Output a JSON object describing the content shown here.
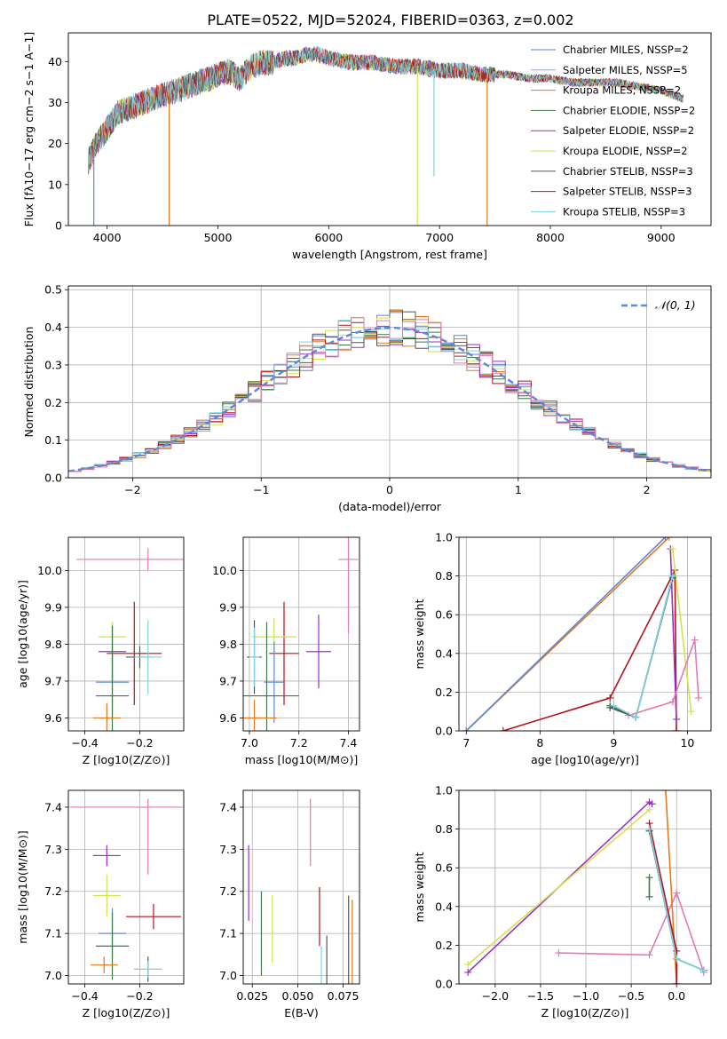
{
  "figure_title": "PLATE=0522, MJD=52024, FIBERID=0363, z=0.002",
  "chart_data": [
    {
      "type": "line",
      "panel": "spectrum",
      "xlabel": "wavelength [Angstrom, rest frame]",
      "ylabel": "Flux [fλ10−17 erg cm−2 s−1 A−1]",
      "xlim": [
        3650,
        9450
      ],
      "ylim": [
        0,
        47
      ],
      "xticks": [
        4000,
        5000,
        6000,
        7000,
        8000,
        9000
      ],
      "yticks": [
        0,
        10,
        20,
        30,
        40
      ],
      "grid": false,
      "legend_position": "top-right",
      "series": [
        {
          "name": "Chabrier MILES, NSSP=2",
          "color": "#5f86d9"
        },
        {
          "name": "Salpeter MILES, NSSP=5",
          "color": "#9aa7c7"
        },
        {
          "name": "Kroupa MILES, NSSP=2",
          "color": "#e07b1f"
        },
        {
          "name": "Chabrier ELODIE, NSSP=2",
          "color": "#3d7a4a"
        },
        {
          "name": "Salpeter ELODIE, NSSP=2",
          "color": "#9b2fc4"
        },
        {
          "name": "Kroupa ELODIE, NSSP=2",
          "color": "#d2e34b"
        },
        {
          "name": "Chabrier STELIB, NSSP=3",
          "color": "#555555"
        },
        {
          "name": "Salpeter STELIB, NSSP=3",
          "color": "#b3141b"
        },
        {
          "name": "Kroupa STELIB, NSSP=3",
          "color": "#7fd3e0"
        }
      ],
      "continuum": {
        "x": [
          3830,
          3900,
          3950,
          4000,
          4100,
          4200,
          4300,
          4400,
          4500,
          4600,
          4700,
          4800,
          4900,
          5000,
          5100,
          5200,
          5300,
          5400,
          5500,
          5600,
          5700,
          5800,
          5900,
          6000,
          6200,
          6400,
          6600,
          6800,
          7000,
          7200,
          7400,
          7600,
          7800,
          8000,
          8200,
          8400,
          8600,
          8800,
          9000,
          9100,
          9200
        ],
        "y": [
          16,
          20,
          22,
          24,
          28,
          29,
          30,
          31,
          32,
          33,
          34,
          35,
          36,
          37,
          38,
          36,
          39,
          40,
          40,
          41,
          41,
          42,
          42,
          41,
          40,
          40,
          39,
          39,
          38,
          38,
          37,
          37,
          36,
          36,
          35,
          35,
          35,
          34,
          33,
          32,
          31
        ]
      },
      "absorption_spikes": [
        {
          "x": 3880,
          "y": 0
        },
        {
          "x": 4560,
          "y": 0
        },
        {
          "x": 6800,
          "y": 0
        },
        {
          "x": 6950,
          "y": 12
        },
        {
          "x": 7430,
          "y": 0
        }
      ]
    },
    {
      "type": "line",
      "panel": "residual-histogram",
      "xlabel": "(data-model)/error",
      "ylabel": "Normed distribution",
      "xlim": [
        -2.5,
        2.5
      ],
      "ylim": [
        0,
        0.51
      ],
      "xticks": [
        -2,
        -1,
        0,
        1,
        2
      ],
      "yticks": [
        0,
        0.1,
        0.2,
        0.3,
        0.4,
        0.5
      ],
      "grid": true,
      "legend_position": "top-right",
      "reference_curve": {
        "name": "𝒩(0, 1)",
        "color": "#5f86d9"
      },
      "bin_width": 0.1
    },
    {
      "type": "scatter",
      "panel": "age-vs-Z",
      "xlabel": "Z [log10(Z/Z⊙)]",
      "ylabel": "age [log10(age/yr)]",
      "xlim": [
        -0.46,
        -0.04
      ],
      "ylim": [
        9.565,
        10.09
      ],
      "xticks": [
        -0.4,
        -0.2
      ],
      "yticks": [
        9.6,
        9.7,
        9.8,
        9.9,
        10.0
      ],
      "grid": true,
      "points": [
        {
          "x": -0.17,
          "y": 10.03,
          "xerr": 0.26,
          "yerr": 0.03,
          "color": "#e07bb5"
        },
        {
          "x": -0.22,
          "y": 9.775,
          "xerr": 0.1,
          "yerr": 0.14,
          "color": "#b3141b"
        },
        {
          "x": -0.3,
          "y": 9.78,
          "xerr": 0.05,
          "yerr": 0.08,
          "color": "#9b2fc4"
        },
        {
          "x": -0.3,
          "y": 9.82,
          "xerr": 0.05,
          "yerr": 0.04,
          "color": "#d2e34b"
        },
        {
          "x": -0.3,
          "y": 9.697,
          "xerr": 0.06,
          "yerr": 0.1,
          "color": "#5f86d9"
        },
        {
          "x": -0.3,
          "y": 9.66,
          "xerr": 0.06,
          "yerr": 0.19,
          "color": "#3d7a4a"
        },
        {
          "x": -0.32,
          "y": 9.6,
          "xerr": 0.05,
          "yerr": 0.04,
          "color": "#e07b1f"
        },
        {
          "x": -0.2,
          "y": 9.765,
          "xerr": 0.05,
          "yerr": 0.03,
          "color": "#555555"
        },
        {
          "x": -0.17,
          "y": 9.765,
          "xerr": 0.05,
          "yerr": 0.1,
          "color": "#7fd3e0"
        }
      ]
    },
    {
      "type": "scatter",
      "panel": "age-vs-mass",
      "xlabel": "mass [log10(M/M⊙)]",
      "ylabel": "",
      "xlim": [
        6.975,
        7.445
      ],
      "ylim": [
        9.565,
        10.09
      ],
      "xticks": [
        7.0,
        7.2,
        7.4
      ],
      "yticks": [
        9.6,
        9.7,
        9.8,
        9.9,
        10.0
      ],
      "grid": true,
      "points": [
        {
          "x": 7.4,
          "y": 10.03,
          "xerr": 0.04,
          "yerr": 0.2,
          "color": "#e07bb5"
        },
        {
          "x": 7.14,
          "y": 9.775,
          "xerr": 0.06,
          "yerr": 0.14,
          "color": "#b3141b"
        },
        {
          "x": 7.28,
          "y": 9.78,
          "xerr": 0.05,
          "yerr": 0.1,
          "color": "#9b2fc4"
        },
        {
          "x": 7.1,
          "y": 9.82,
          "xerr": 0.09,
          "yerr": 0.05,
          "color": "#d2e34b"
        },
        {
          "x": 7.1,
          "y": 9.697,
          "xerr": 0.04,
          "yerr": 0.11,
          "color": "#5f86d9"
        },
        {
          "x": 7.07,
          "y": 9.66,
          "xerr": 0.13,
          "yerr": 0.2,
          "color": "#3d7a4a"
        },
        {
          "x": 7.02,
          "y": 9.6,
          "xerr": 0.09,
          "yerr": 0.05,
          "color": "#e07b1f"
        },
        {
          "x": 7.02,
          "y": 9.765,
          "xerr": 0.03,
          "yerr": 0.1,
          "color": "#555555"
        },
        {
          "x": 7.02,
          "y": 9.765,
          "xerr": 0.02,
          "yerr": 0.08,
          "color": "#7fd3e0"
        }
      ]
    },
    {
      "type": "line",
      "panel": "mass-weight-vs-age",
      "xlabel": "age [log10(age/yr)]",
      "ylabel": "mass weight",
      "xlim": [
        6.9,
        10.32
      ],
      "ylim": [
        0,
        1
      ],
      "xticks": [
        7,
        8,
        9,
        10
      ],
      "yticks": [
        0,
        0.2,
        0.4,
        0.6,
        0.8,
        1.0
      ],
      "grid": true,
      "series": [
        {
          "color": "#e07b1f",
          "x": [
            7.0,
            9.75
          ],
          "y": [
            0.0,
            1.0
          ]
        },
        {
          "color": "#5f86d9",
          "x": [
            7.0,
            9.7
          ],
          "y": [
            0.0,
            1.0
          ]
        },
        {
          "color": "#b3141b",
          "x": [
            7.5,
            8.95,
            9.83,
            9.85
          ],
          "y": [
            0.0,
            0.17,
            0.83,
            0.0
          ]
        },
        {
          "color": "#9b2fc4",
          "x": [
            9.77,
            9.85
          ],
          "y": [
            0.94,
            0.06
          ]
        },
        {
          "color": "#d2e34b",
          "x": [
            9.8,
            10.05
          ],
          "y": [
            0.94,
            0.1
          ]
        },
        {
          "color": "#e07bb5",
          "x": [
            9.2,
            9.8,
            10.1,
            10.15
          ],
          "y": [
            0.08,
            0.15,
            0.47,
            0.17
          ]
        },
        {
          "color": "#3d7a4a",
          "x": [
            8.95,
            9.3,
            9.8
          ],
          "y": [
            0.13,
            0.07,
            0.8
          ]
        },
        {
          "color": "#555555",
          "x": [
            8.95,
            9.3,
            9.8
          ],
          "y": [
            0.12,
            0.07,
            0.79
          ]
        },
        {
          "color": "#7fd3e0",
          "x": [
            9.0,
            9.3,
            9.8
          ],
          "y": [
            0.13,
            0.07,
            0.8
          ]
        }
      ]
    },
    {
      "type": "scatter",
      "panel": "mass-vs-Z",
      "xlabel": "Z [log10(Z/Z⊙)]",
      "ylabel": "mass [log10(M/M⊙)]",
      "xlim": [
        -0.46,
        -0.04
      ],
      "ylim": [
        6.98,
        7.44
      ],
      "xticks": [
        -0.4,
        -0.2
      ],
      "yticks": [
        7.0,
        7.1,
        7.2,
        7.3,
        7.4
      ],
      "grid": true,
      "points": [
        {
          "x": -0.25,
          "y": 7.4,
          "xerr": 0.2,
          "yerr": 0.0,
          "color": "#e07bb5"
        },
        {
          "x": -0.17,
          "y": 7.33,
          "xerr": 0.0,
          "yerr": 0.09,
          "color": "#e07bb5"
        },
        {
          "x": -0.32,
          "y": 7.285,
          "xerr": 0.05,
          "yerr": 0.025,
          "color": "#9b2fc4"
        },
        {
          "x": -0.32,
          "y": 7.19,
          "xerr": 0.05,
          "yerr": 0.05,
          "color": "#d2e34b"
        },
        {
          "x": -0.15,
          "y": 7.14,
          "xerr": 0.1,
          "yerr": 0.03,
          "color": "#b3141b"
        },
        {
          "x": -0.3,
          "y": 7.1,
          "xerr": 0.05,
          "yerr": 0.06,
          "color": "#5f86d9"
        },
        {
          "x": -0.3,
          "y": 7.07,
          "xerr": 0.06,
          "yerr": 0.08,
          "color": "#3d7a4a"
        },
        {
          "x": -0.33,
          "y": 7.025,
          "xerr": 0.05,
          "yerr": 0.02,
          "color": "#e07b1f"
        },
        {
          "x": -0.17,
          "y": 7.015,
          "xerr": 0.05,
          "yerr": 0.03,
          "color": "#555555"
        },
        {
          "x": -0.17,
          "y": 7.015,
          "xerr": 0.05,
          "yerr": 0.02,
          "color": "#7fd3e0"
        }
      ]
    },
    {
      "type": "scatter",
      "panel": "mass-vs-EBV",
      "xlabel": "E(B-V)",
      "ylabel": "",
      "xlim": [
        0.02,
        0.084
      ],
      "ylim": [
        6.98,
        7.44
      ],
      "xticks": [
        0.025,
        0.05,
        0.075
      ],
      "yticks": [
        7.0,
        7.1,
        7.2,
        7.3,
        7.4
      ],
      "grid": true,
      "points": [
        {
          "x": 0.057,
          "y": 7.34,
          "xerr": 0,
          "yerr": 0.08,
          "color": "#e07bb5"
        },
        {
          "x": 0.023,
          "y": 7.22,
          "xerr": 0,
          "yerr": 0.09,
          "color": "#9b2fc4"
        },
        {
          "x": 0.036,
          "y": 7.11,
          "xerr": 0,
          "yerr": 0.08,
          "color": "#d2e34b"
        },
        {
          "x": 0.03,
          "y": 7.1,
          "xerr": 0,
          "yerr": 0.1,
          "color": "#3d7a4a"
        },
        {
          "x": 0.062,
          "y": 7.14,
          "xerr": 0,
          "yerr": 0.07,
          "color": "#b3141b"
        },
        {
          "x": 0.063,
          "y": 7.02,
          "xerr": 0,
          "yerr": 0.05,
          "color": "#7fd3e0"
        },
        {
          "x": 0.066,
          "y": 7.035,
          "xerr": 0,
          "yerr": 0.06,
          "color": "#555555"
        },
        {
          "x": 0.078,
          "y": 7.07,
          "xerr": 0,
          "yerr": 0.12,
          "color": "#555555"
        },
        {
          "x": 0.08,
          "y": 7.08,
          "xerr": 0,
          "yerr": 0.1,
          "color": "#e07b1f"
        }
      ]
    },
    {
      "type": "line",
      "panel": "mass-weight-vs-Z",
      "xlabel": "Z [log10(Z/Z⊙)]",
      "ylabel": "mass weight",
      "xlim": [
        -2.4,
        0.38
      ],
      "ylim": [
        0,
        1
      ],
      "xticks": [
        -2.0,
        -1.5,
        -1.0,
        -0.5,
        0.0
      ],
      "yticks": [
        0,
        0.2,
        0.4,
        0.6,
        0.8,
        1.0
      ],
      "grid": true,
      "series": [
        {
          "color": "#9b2fc4",
          "x": [
            -2.3,
            -0.3,
            -0.27
          ],
          "y": [
            0.06,
            0.94,
            0.93
          ]
        },
        {
          "color": "#d2e34b",
          "x": [
            -2.3,
            -0.3
          ],
          "y": [
            0.1,
            0.9
          ]
        },
        {
          "color": "#e07bb5",
          "x": [
            -1.3,
            -0.3,
            0.0,
            0.3
          ],
          "y": [
            0.16,
            0.15,
            0.47,
            0.06
          ]
        },
        {
          "color": "#e07b1f",
          "x": [
            -0.12,
            0.0
          ],
          "y": [
            1.0,
            0.0
          ]
        },
        {
          "color": "#b3141b",
          "x": [
            -0.3,
            0.0,
            0.0
          ],
          "y": [
            0.83,
            0.17,
            0.0
          ]
        },
        {
          "color": "#5f86d9",
          "x": [
            -0.3,
            0.0,
            0.3
          ],
          "y": [
            0.8,
            0.13,
            0.07
          ]
        },
        {
          "color": "#3d7a4a",
          "x": [
            -0.3,
            -0.3
          ],
          "y": [
            0.55,
            0.45
          ]
        },
        {
          "color": "#555555",
          "x": [
            -0.3,
            0.0,
            0.3
          ],
          "y": [
            0.79,
            0.13,
            0.07
          ]
        },
        {
          "color": "#7fd3e0",
          "x": [
            -0.3,
            0.0,
            0.3
          ],
          "y": [
            0.8,
            0.13,
            0.07
          ]
        }
      ]
    }
  ]
}
